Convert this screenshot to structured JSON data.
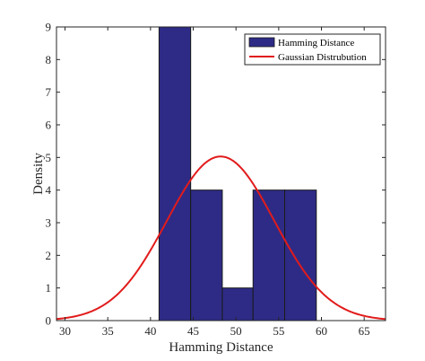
{
  "colors": {
    "bar_fill": "#2e2b86",
    "bar_edge": "#1a1a1a",
    "curve": "#e21b1b",
    "axis": "#262626",
    "background": "#ffffff"
  },
  "chart_data": {
    "type": "bar",
    "title": "",
    "xlabel": "Hamming Distance",
    "ylabel": "Density",
    "xlim": [
      29,
      67.5
    ],
    "ylim": [
      0,
      9
    ],
    "x_ticks": [
      30,
      35,
      40,
      45,
      50,
      55,
      60,
      65
    ],
    "y_ticks": [
      0,
      1,
      2,
      3,
      4,
      5,
      6,
      7,
      8,
      9
    ],
    "grid": false,
    "legend_position": "top-right",
    "bin_edges": [
      41.0,
      44.7,
      48.4,
      52.0,
      55.7,
      59.4
    ],
    "series": [
      {
        "name": "Hamming Distance",
        "kind": "histogram",
        "values": [
          9,
          4,
          1,
          4,
          4
        ]
      },
      {
        "name": "Gaussian Distrubution",
        "kind": "line",
        "mean": 48.2,
        "std": 6.3,
        "peak": 5.03
      }
    ]
  }
}
